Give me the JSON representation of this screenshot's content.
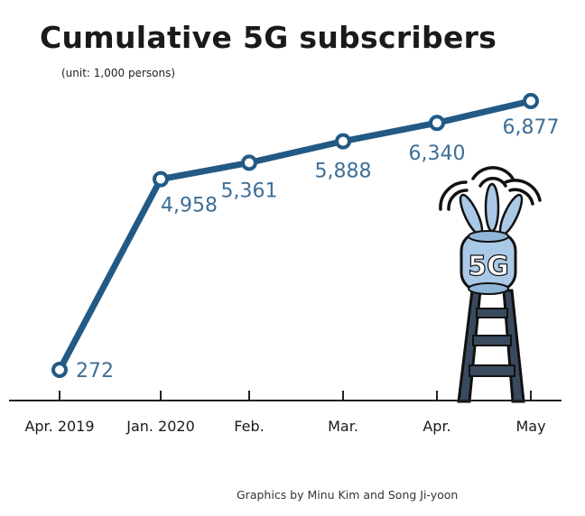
{
  "chart_data": {
    "type": "line",
    "title": "Cumulative 5G subscribers",
    "subtitle": "(unit: 1,000 persons)",
    "categories": [
      "Apr. 2019",
      "Jan. 2020",
      "Feb.",
      "Mar.",
      "Apr.",
      "May"
    ],
    "series": [
      {
        "values": [
          272,
          4958,
          5361,
          5888,
          6340,
          6877
        ]
      }
    ],
    "data_labels": [
      "272",
      "4,958",
      "5,361",
      "5,888",
      "6,340",
      "6,877"
    ],
    "ylim": [
      0,
      7200
    ],
    "grid": false,
    "colors": {
      "line": "#225a85",
      "label": "#3e6f97",
      "axis": "#222222"
    }
  },
  "credit": "Graphics by Minu Kim and Song Ji-yoon",
  "illustration": {
    "icon": "5g-tower-icon",
    "text": "5G"
  }
}
